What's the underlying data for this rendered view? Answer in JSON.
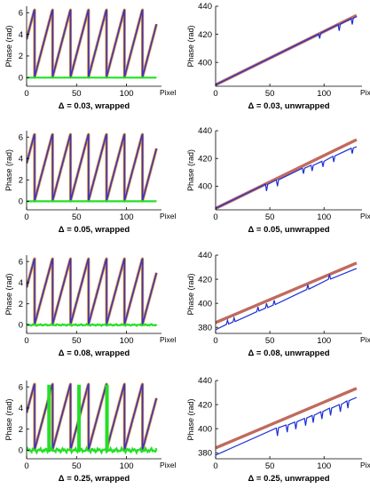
{
  "colors": {
    "wrapped_true": "#e8932e",
    "wrapped_measured": "#3535c8",
    "wrapped_residual": "#22e026",
    "unwrapped_true": "#c06a5e",
    "unwrapped_recovered": "#1a2fd6",
    "axis": "#000000"
  },
  "chart_data": [
    {
      "type": "line",
      "title": "Δ = 0.03, wrapped",
      "xlabel": "Pixel",
      "ylabel": "Phase (rad)",
      "xlim": [
        0,
        135
      ],
      "ylim": [
        -0.8,
        6.6
      ],
      "xticks": [
        0,
        50,
        100
      ],
      "yticks": [
        0,
        2,
        4,
        6
      ],
      "series": [
        {
          "role": "true",
          "values": "sawtooth phase wrapped to [0, 2π), slope 0.35 rad/pixel, start 3.5 rad"
        },
        {
          "role": "measured",
          "values": "overlaps true wrapped phase"
        },
        {
          "role": "residual",
          "values": [
            0,
            0
          ]
        }
      ],
      "x": [
        0,
        130
      ],
      "wrap_points": [
        8,
        26,
        44,
        62,
        80,
        98,
        116
      ]
    },
    {
      "type": "line",
      "title": "Δ = 0.03, unwrapped",
      "xlabel": "Pixel",
      "ylabel": "Phase (rad)",
      "xlim": [
        0,
        135
      ],
      "ylim": [
        383,
        440
      ],
      "xticks": [
        0,
        50,
        100
      ],
      "yticks": [
        400,
        420,
        440
      ],
      "series": [
        {
          "role": "true",
          "x": [
            0,
            130
          ],
          "y": [
            384,
            433.5
          ]
        },
        {
          "role": "recovered",
          "x": [
            0,
            95,
            96,
            97,
            113,
            114,
            115,
            125,
            126,
            127,
            130
          ],
          "y": [
            384,
            420.2,
            417,
            420.9,
            427,
            422.5,
            427.4,
            431.2,
            427,
            431.5,
            432.6
          ]
        }
      ]
    },
    {
      "type": "line",
      "title": "Δ = 0.05, wrapped",
      "xlabel": "Pixel",
      "ylabel": "Phase (rad)",
      "xlim": [
        0,
        135
      ],
      "ylim": [
        -0.8,
        6.6
      ],
      "xticks": [
        0,
        50,
        100
      ],
      "yticks": [
        0,
        2,
        4,
        6
      ],
      "series": [
        {
          "role": "true",
          "values": "sawtooth phase wrapped to [0, 2π)"
        },
        {
          "role": "measured",
          "values": "overlaps true wrapped phase"
        },
        {
          "role": "residual",
          "values": [
            0,
            0
          ]
        }
      ],
      "x": [
        0,
        130
      ],
      "wrap_points": [
        8,
        26,
        44,
        62,
        80,
        98,
        116
      ]
    },
    {
      "type": "line",
      "title": "Δ = 0.05, unwrapped",
      "xlabel": "Pixel",
      "ylabel": "Phase (rad)",
      "xlim": [
        0,
        135
      ],
      "ylim": [
        383,
        440
      ],
      "xticks": [
        0,
        50,
        100
      ],
      "yticks": [
        400,
        420,
        440
      ],
      "series": [
        {
          "role": "true",
          "x": [
            0,
            130
          ],
          "y": [
            384,
            433.5
          ]
        },
        {
          "role": "recovered",
          "x": [
            0,
            46,
            47,
            48,
            56,
            57,
            58,
            80,
            81,
            82,
            88,
            89,
            90,
            98,
            99,
            100,
            108,
            109,
            110,
            125,
            126,
            127,
            130
          ],
          "y": [
            384,
            401.5,
            396.5,
            401.3,
            404.5,
            400,
            404.6,
            413,
            409,
            413,
            415,
            411,
            415,
            418,
            414,
            418,
            421.5,
            417.5,
            421.8,
            427.3,
            423.5,
            427.5,
            428.4
          ]
        }
      ]
    },
    {
      "type": "line",
      "title": "Δ = 0.08, wrapped",
      "xlabel": "Pixel",
      "ylabel": "Phase (rad)",
      "xlim": [
        0,
        135
      ],
      "ylim": [
        -0.8,
        6.6
      ],
      "xticks": [
        0,
        50,
        100
      ],
      "yticks": [
        0,
        2,
        4,
        6
      ],
      "series": [
        {
          "role": "true",
          "values": "sawtooth phase wrapped to [0, 2π)"
        },
        {
          "role": "measured",
          "values": "overlaps true wrapped phase"
        },
        {
          "role": "residual",
          "values": "near-zero noise"
        }
      ],
      "x": [
        0,
        130
      ],
      "wrap_points": [
        8,
        26,
        44,
        62,
        80,
        98,
        116
      ]
    },
    {
      "type": "line",
      "title": "Δ = 0.08, unwrapped",
      "xlabel": "Pixel",
      "ylabel": "Phase (rad)",
      "xlim": [
        0,
        135
      ],
      "ylim": [
        375,
        440
      ],
      "xticks": [
        0,
        50,
        100
      ],
      "yticks": [
        380,
        400,
        420,
        440
      ],
      "series": [
        {
          "role": "true",
          "x": [
            0,
            130
          ],
          "y": [
            384,
            433.5
          ]
        },
        {
          "role": "recovered",
          "x": [
            0,
            10,
            11,
            12,
            16,
            17,
            18,
            38,
            39,
            40,
            46,
            47,
            48,
            53,
            54,
            55,
            84,
            85,
            86,
            104,
            105,
            106,
            130
          ],
          "y": [
            378,
            382.5,
            386,
            382.8,
            384.5,
            388,
            384.8,
            393,
            397,
            393.6,
            396,
            400,
            396.5,
            398.5,
            402.5,
            399,
            411.5,
            415.5,
            411.8,
            420,
            424,
            420.2,
            429
          ]
        }
      ]
    },
    {
      "type": "line",
      "title": "Δ = 0.25, wrapped",
      "xlabel": "Pixel",
      "ylabel": "Phase (rad)",
      "xlim": [
        0,
        135
      ],
      "ylim": [
        -0.8,
        6.6
      ],
      "xticks": [
        0,
        50,
        100
      ],
      "yticks": [
        0,
        2,
        4,
        6
      ],
      "series": [
        {
          "role": "true",
          "values": "sawtooth phase wrapped to [0, 2π)"
        },
        {
          "role": "measured",
          "values": "overlaps true wrapped phase"
        },
        {
          "role": "residual",
          "values": "noise with spikes to ~6.2 near x = 22, 52, 80"
        }
      ],
      "x": [
        0,
        130
      ],
      "wrap_points": [
        8,
        26,
        44,
        62,
        80,
        98,
        116
      ]
    },
    {
      "type": "line",
      "title": "Δ = 0.25, unwrapped",
      "xlabel": "Pixel",
      "ylabel": "Phase (rad)",
      "xlim": [
        0,
        135
      ],
      "ylim": [
        375,
        440
      ],
      "xticks": [
        0,
        50,
        100
      ],
      "yticks": [
        380,
        400,
        420,
        440
      ],
      "series": [
        {
          "role": "true",
          "x": [
            0,
            130
          ],
          "y": [
            384,
            433.5
          ]
        },
        {
          "role": "recovered",
          "x": [
            0,
            56,
            57,
            58,
            65,
            66,
            67,
            73,
            74,
            75,
            82,
            83,
            84,
            89,
            90,
            91,
            97,
            98,
            99,
            105,
            106,
            107,
            114,
            115,
            116,
            121,
            122,
            123,
            130
          ],
          "y": [
            378,
            400.5,
            394,
            400.8,
            403,
            397,
            403.2,
            405.5,
            399.5,
            405.8,
            408.5,
            402.5,
            408.8,
            411,
            405,
            411.2,
            414,
            408,
            414.3,
            417,
            411,
            417.2,
            420,
            414,
            420.2,
            423,
            417,
            423.2,
            426
          ]
        }
      ]
    }
  ]
}
